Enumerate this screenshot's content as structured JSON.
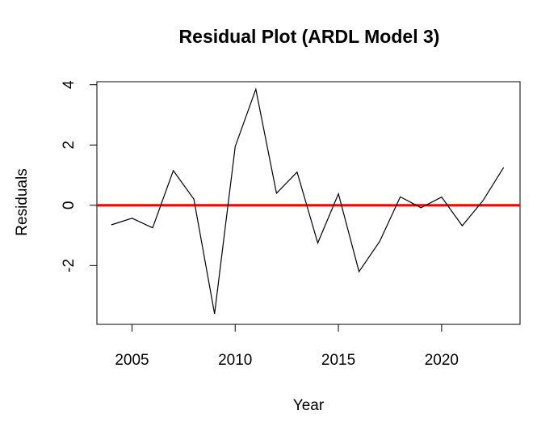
{
  "chart_data": {
    "type": "line",
    "title": "Residual Plot (ARDL Model 3)",
    "xlabel": "Year",
    "ylabel": "Residuals",
    "xlim": [
      2003.3,
      2023.8
    ],
    "ylim": [
      -3.95,
      4.1
    ],
    "x_ticks": [
      2005,
      2010,
      2015,
      2020
    ],
    "y_ticks": [
      -2,
      0,
      2,
      4
    ],
    "grid": false,
    "legend": "none",
    "series": [
      {
        "color": "#000000",
        "x": [
          2004,
          2005,
          2006,
          2007,
          2008,
          2009,
          2010,
          2011,
          2012,
          2013,
          2014,
          2015,
          2016,
          2017,
          2018,
          2019,
          2020,
          2021,
          2022,
          2023
        ],
        "values": [
          -0.65,
          -0.43,
          -0.75,
          1.15,
          0.2,
          -3.6,
          1.95,
          3.85,
          0.4,
          1.1,
          -1.25,
          0.38,
          -2.2,
          -1.2,
          0.28,
          -0.08,
          0.27,
          -0.68,
          0.15,
          1.25
        ]
      }
    ],
    "reference_line": {
      "y": 0,
      "color": "#ff0000"
    }
  }
}
